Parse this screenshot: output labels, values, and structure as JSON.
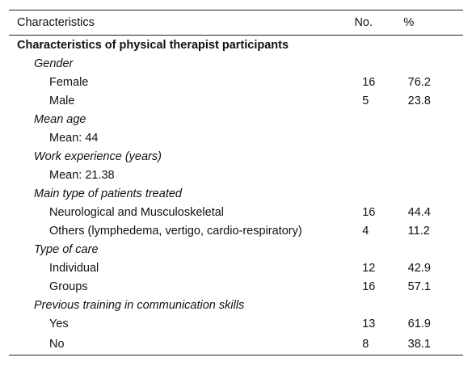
{
  "table": {
    "headers": {
      "characteristics": "Characteristics",
      "no": "No.",
      "pct": "%"
    },
    "section_title": "Characteristics of physical therapist participants",
    "groups": [
      {
        "label": "Gender",
        "items": [
          {
            "label": "Female",
            "no": "16",
            "pct": "76.2"
          },
          {
            "label": "Male",
            "no": "5",
            "pct": "23.8"
          }
        ]
      },
      {
        "label": "Mean age",
        "items": [
          {
            "label": "Mean: 44",
            "no": "",
            "pct": ""
          }
        ]
      },
      {
        "label": "Work experience (years)",
        "items": [
          {
            "label": "Mean: 21.38",
            "no": "",
            "pct": ""
          }
        ]
      },
      {
        "label": "Main type of patients treated",
        "items": [
          {
            "label": "Neurological and Musculoskeletal",
            "no": "16",
            "pct": "44.4"
          },
          {
            "label": "Others (lymphedema, vertigo, cardio-respiratory)",
            "no": "4",
            "pct": "11.2"
          }
        ]
      },
      {
        "label": "Type of care",
        "items": [
          {
            "label": "Individual",
            "no": "12",
            "pct": "42.9"
          },
          {
            "label": "Groups",
            "no": "16",
            "pct": "57.1"
          }
        ]
      },
      {
        "label": "Previous training in communication skills",
        "items": [
          {
            "label": "Yes",
            "no": "13",
            "pct": "61.9"
          },
          {
            "label": "No",
            "no": "8",
            "pct": "38.1"
          }
        ]
      }
    ]
  }
}
